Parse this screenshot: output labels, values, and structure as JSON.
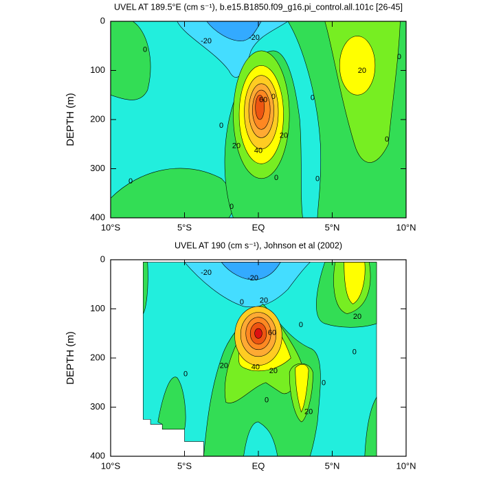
{
  "chart_data": [
    {
      "type": "contour",
      "title": "UVEL AT 189.5°E (cm s⁻¹), b.e15.B1850.f09_g16.pi_control.all.101c [26-45]",
      "y_label": "DEPTH (m)",
      "xlim": [
        -10,
        10
      ],
      "xticks": [
        {
          "value": -10,
          "label": "10°S"
        },
        {
          "value": -5,
          "label": "5°S"
        },
        {
          "value": 0,
          "label": "EQ"
        },
        {
          "value": 5,
          "label": "5°N"
        },
        {
          "value": 10,
          "label": "10°N"
        }
      ],
      "ylim": [
        0,
        400
      ],
      "y_inverted": true,
      "yticks": [
        0,
        100,
        200,
        300,
        400
      ],
      "levels": [
        -20,
        -10,
        0,
        10,
        20,
        30,
        40,
        50,
        60
      ],
      "colors": [
        "#33aaff",
        "#44ddff",
        "#22eedd",
        "#33dd55",
        "#77ee22",
        "#ffff00",
        "#ffcc22",
        "#ffaa33",
        "#ff8822",
        "#ee5511"
      ],
      "contour_labels": [
        {
          "x": -3.53,
          "y": 41,
          "value": -20
        },
        {
          "x": -0.28,
          "y": 34,
          "value": -20
        },
        {
          "x": -7.67,
          "y": 58,
          "value": 0
        },
        {
          "x": 9.53,
          "y": 73,
          "value": 0
        },
        {
          "x": 7.02,
          "y": 101,
          "value": 20
        },
        {
          "x": 0.33,
          "y": 160,
          "value": 60
        },
        {
          "x": 1.02,
          "y": 154,
          "value": 0
        },
        {
          "x": 3.67,
          "y": 156,
          "value": 0
        },
        {
          "x": -2.51,
          "y": 213,
          "value": 0
        },
        {
          "x": -1.49,
          "y": 254,
          "value": 20
        },
        {
          "x": 1.72,
          "y": 233,
          "value": 20
        },
        {
          "x": 0,
          "y": 264,
          "value": 40
        },
        {
          "x": 8.7,
          "y": 241,
          "value": 0
        },
        {
          "x": -8.65,
          "y": 326,
          "value": 0
        },
        {
          "x": 1.21,
          "y": 319,
          "value": 0
        },
        {
          "x": 4,
          "y": 321,
          "value": 0
        },
        {
          "x": -1.81,
          "y": 378,
          "value": 0
        }
      ]
    },
    {
      "type": "contour",
      "title": "UVEL AT 190 (cm s⁻¹), Johnson et al (2002)",
      "y_label": "DEPTH (m)",
      "xlim": [
        -10,
        10
      ],
      "xticks": [
        {
          "value": -10,
          "label": "10°S"
        },
        {
          "value": -5,
          "label": "5°S"
        },
        {
          "value": 0,
          "label": "EQ"
        },
        {
          "value": 5,
          "label": "5°N"
        },
        {
          "value": 10,
          "label": "10°N"
        }
      ],
      "ylim": [
        0,
        400
      ],
      "y_inverted": true,
      "yticks": [
        0,
        100,
        200,
        300,
        400
      ],
      "levels": [
        -20,
        -10,
        0,
        10,
        20,
        30,
        40,
        50,
        60
      ],
      "colors": [
        "#33aaff",
        "#44ddff",
        "#22eedd",
        "#33dd55",
        "#77ee22",
        "#ffff00",
        "#ffcc22",
        "#ffaa33",
        "#ff8822",
        "#ee5511"
      ],
      "contour_labels": [
        {
          "x": -3.53,
          "y": 27,
          "value": -20
        },
        {
          "x": -0.37,
          "y": 38,
          "value": -20
        },
        {
          "x": 0.37,
          "y": 83,
          "value": 20
        },
        {
          "x": -1.12,
          "y": 87,
          "value": 0
        },
        {
          "x": 2.88,
          "y": 133,
          "value": 0
        },
        {
          "x": 6.7,
          "y": 116,
          "value": 20
        },
        {
          "x": 0.93,
          "y": 149,
          "value": 60
        },
        {
          "x": 6.5,
          "y": 188,
          "value": 0
        },
        {
          "x": -2.33,
          "y": 216,
          "value": 20
        },
        {
          "x": -0.19,
          "y": 219,
          "value": 40
        },
        {
          "x": 1.02,
          "y": 227,
          "value": 20
        },
        {
          "x": -4.93,
          "y": 233,
          "value": 0
        },
        {
          "x": 4.42,
          "y": 251,
          "value": 0
        },
        {
          "x": 0.56,
          "y": 286,
          "value": 0
        },
        {
          "x": 3.4,
          "y": 310,
          "value": 20
        }
      ]
    }
  ]
}
